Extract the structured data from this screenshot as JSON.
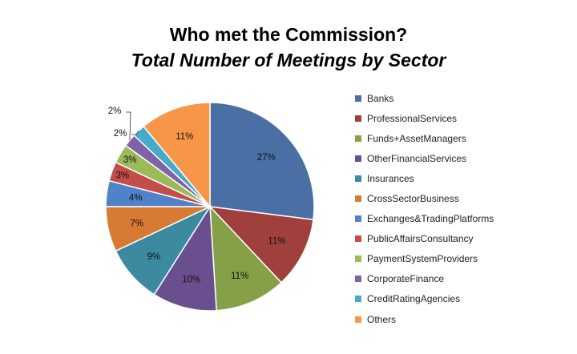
{
  "chart_data": {
    "type": "pie",
    "title": "Who met the Commission?",
    "subtitle": "Total Number of Meetings by Sector",
    "legend_position": "right",
    "slices": [
      {
        "label": "Banks",
        "value": 27,
        "display": "27%",
        "color": "#4A6FA5"
      },
      {
        "label": "ProfessionalServices",
        "value": 11,
        "display": "11%",
        "color": "#A0403C"
      },
      {
        "label": "Funds+AssetManagers",
        "value": 11,
        "display": "11%",
        "color": "#85A046"
      },
      {
        "label": "OtherFinancialServices",
        "value": 10,
        "display": "10%",
        "color": "#6A4F8E"
      },
      {
        "label": "Insurances",
        "value": 9,
        "display": "9%",
        "color": "#3B8AA0"
      },
      {
        "label": "CrossSectorBusiness",
        "value": 7,
        "display": "7%",
        "color": "#D67A34"
      },
      {
        "label": "Exchanges&TradingPlatforms",
        "value": 4,
        "display": "4%",
        "color": "#4F82C8"
      },
      {
        "label": "PublicAffairsConsultancy",
        "value": 3,
        "display": "3%",
        "color": "#C44D4A"
      },
      {
        "label": "PaymentSystemProviders",
        "value": 3,
        "display": "3%",
        "color": "#9BBB59"
      },
      {
        "label": "CorporateFinance",
        "value": 2,
        "display": "2%",
        "color": "#7F63A4"
      },
      {
        "label": "CreditRatingAgencies",
        "value": 2,
        "display": "2%",
        "color": "#46AACB"
      },
      {
        "label": "Others",
        "value": 11,
        "display": "11%",
        "color": "#F79646"
      }
    ]
  }
}
